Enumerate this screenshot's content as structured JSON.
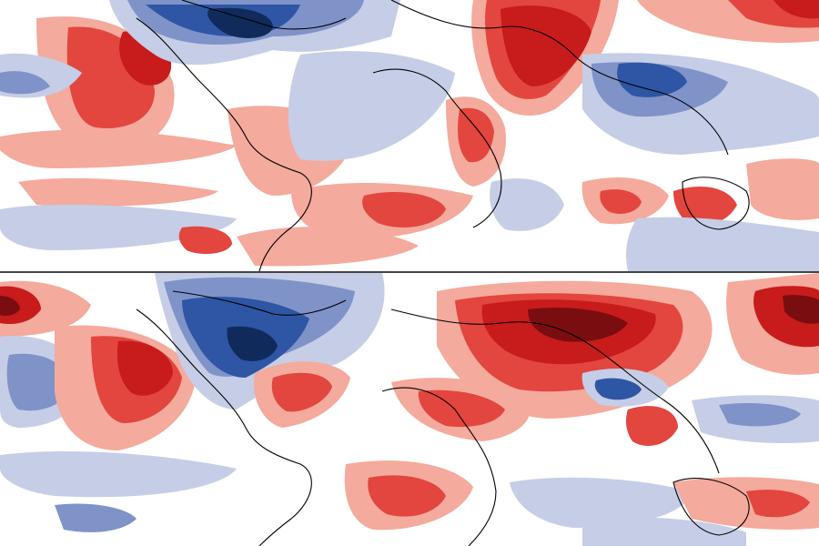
{
  "figure": {
    "panels": [
      {
        "id": "top",
        "label": ""
      },
      {
        "id": "bottom",
        "label": ""
      }
    ]
  },
  "colors": {
    "strong_positive": "#7a0d10",
    "positive_dark": "#c81b1b",
    "positive_mid": "#e2463e",
    "positive_light": "#f4aa9c",
    "neutral": "#ffffff",
    "negative_light": "#c6cde6",
    "negative_mid": "#7f93c9",
    "negative_dark": "#2e56a5",
    "strong_negative": "#102a5c",
    "coastline": "#000000",
    "divider": "#444444"
  },
  "legend": {
    "shown": false
  }
}
